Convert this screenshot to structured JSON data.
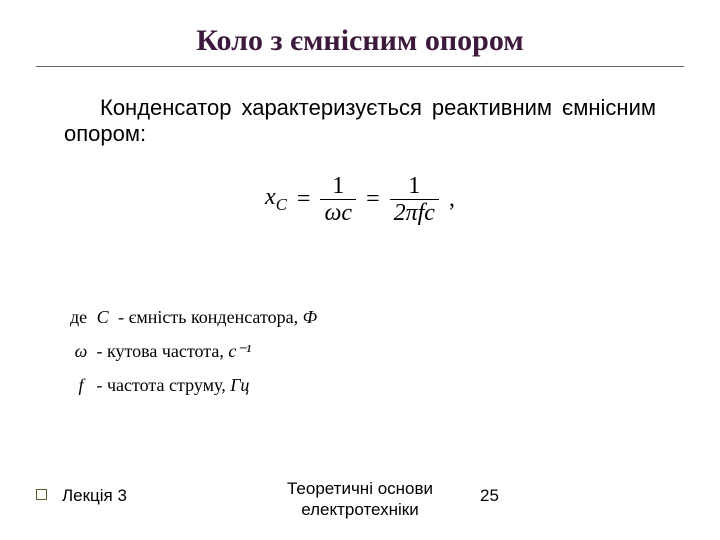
{
  "title": {
    "text": "Коло з ємнісним опором",
    "color": "#3d1a3d",
    "fontsize": 30
  },
  "body": {
    "text": "Конденсатор характеризується реактивним ємнісним опором:",
    "fontsize": 22,
    "color": "#000000"
  },
  "formula": {
    "lhs_var": "x",
    "lhs_sub": "C",
    "eq": "=",
    "frac1_num": "1",
    "frac1_den": "ωc",
    "frac2_num": "1",
    "frac2_den": "2πfс",
    "trailing": ",",
    "fontsize": 24,
    "color": "#000000"
  },
  "legend": {
    "fontsize": 18,
    "lines": [
      {
        "prefix": "де ",
        "sym": "C",
        "dash": " - ",
        "desc": "ємність конденсатора, ",
        "unit": "Ф"
      },
      {
        "prefix": "",
        "sym": "ω",
        "dash": " - ",
        "desc": "кутова частота, ",
        "unit": "с⁻¹"
      },
      {
        "prefix": "",
        "sym": "f",
        "dash": " - ",
        "desc": "частота струму, ",
        "unit": "Гц"
      }
    ]
  },
  "footer": {
    "left": "Лекція 3",
    "center_line1": "Теоретичні основи",
    "center_line2": "електротехніки",
    "page": "25",
    "fontsize": 17,
    "color": "#000000"
  },
  "colors": {
    "background": "#ffffff",
    "rule": "#666666"
  }
}
